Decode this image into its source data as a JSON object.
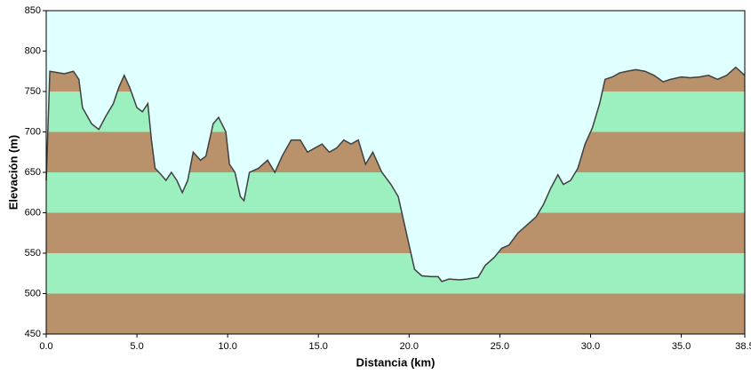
{
  "chart_data": {
    "type": "area",
    "x_label": "Distancia   (km)",
    "y_label": "Elevación (m)",
    "x": [
      0,
      0.2,
      1.0,
      1.5,
      1.8,
      2.0,
      2.5,
      2.9,
      3.3,
      3.7,
      4.0,
      4.3,
      4.6,
      5.0,
      5.3,
      5.6,
      5.8,
      6.0,
      6.3,
      6.6,
      6.9,
      7.2,
      7.5,
      7.8,
      8.1,
      8.5,
      8.8,
      9.2,
      9.5,
      9.9,
      10.1,
      10.4,
      10.7,
      10.9,
      11.2,
      11.7,
      12.2,
      12.6,
      13.0,
      13.5,
      14.0,
      14.4,
      14.8,
      15.2,
      15.6,
      16.0,
      16.4,
      16.8,
      17.2,
      17.6,
      18.0,
      18.5,
      19.0,
      19.4,
      19.7,
      20.0,
      20.3,
      20.7,
      21.2,
      21.6,
      21.8,
      22.2,
      22.8,
      23.2,
      23.8,
      24.2,
      24.7,
      25.1,
      25.5,
      26.0,
      26.5,
      27.0,
      27.4,
      27.8,
      28.2,
      28.5,
      28.9,
      29.3,
      29.7,
      30.1,
      30.5,
      30.8,
      31.2,
      31.6,
      32.0,
      32.5,
      33.0,
      33.5,
      34.0,
      34.4,
      35.0,
      35.5,
      36.0,
      36.5,
      37.0,
      37.5,
      38.0,
      38.5
    ],
    "values": [
      640,
      775,
      772,
      775,
      765,
      730,
      710,
      703,
      720,
      735,
      755,
      770,
      755,
      730,
      725,
      735,
      690,
      655,
      648,
      640,
      650,
      640,
      625,
      640,
      675,
      665,
      670,
      710,
      718,
      700,
      660,
      650,
      620,
      615,
      650,
      655,
      665,
      650,
      670,
      690,
      690,
      675,
      680,
      685,
      675,
      680,
      690,
      685,
      690,
      660,
      675,
      650,
      635,
      620,
      590,
      560,
      530,
      522,
      521,
      521,
      515,
      518,
      517,
      518,
      520,
      535,
      545,
      556,
      560,
      575,
      585,
      595,
      610,
      630,
      647,
      635,
      640,
      655,
      685,
      705,
      735,
      765,
      768,
      773,
      775,
      777,
      775,
      770,
      762,
      765,
      768,
      767,
      768,
      770,
      765,
      770,
      780,
      770
    ],
    "xlim": [
      0,
      38.5
    ],
    "ylim": [
      450,
      850
    ],
    "xticks": [
      {
        "value": 0,
        "label": "0.0"
      },
      {
        "value": 5,
        "label": "5.0"
      },
      {
        "value": 10,
        "label": "10.0"
      },
      {
        "value": 15,
        "label": "15.0"
      },
      {
        "value": 20,
        "label": "20.0"
      },
      {
        "value": 25,
        "label": "25.0"
      },
      {
        "value": 30,
        "label": "30.0"
      },
      {
        "value": 35,
        "label": "35.0"
      },
      {
        "value": 38.5,
        "label": "38.5"
      }
    ],
    "yticks": [
      450,
      500,
      550,
      600,
      650,
      700,
      750,
      800,
      850
    ],
    "line_color": "#404040",
    "band_colors": [
      "#b9926b",
      "#9cf0c0"
    ],
    "background_color": "#e0ffff"
  }
}
